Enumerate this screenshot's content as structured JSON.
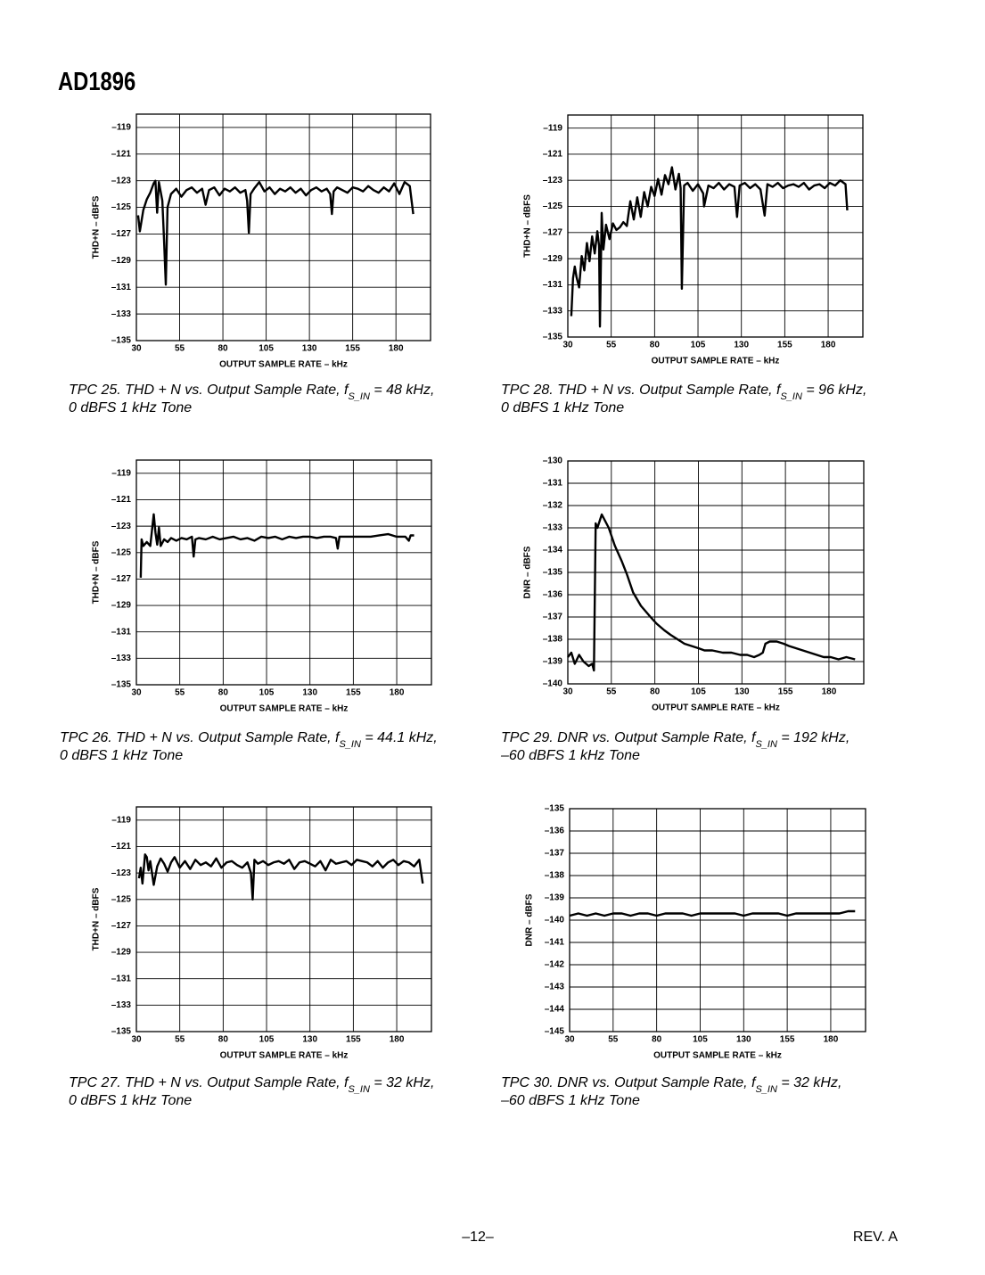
{
  "header": {
    "title": "AD1896"
  },
  "footer": {
    "page": "–12–",
    "revision": "REV. A"
  },
  "chart_data": [
    {
      "type": "line",
      "color": "#000000",
      "grid": true,
      "caption": {
        "prefix": "TPC 25.  THD + N vs. Output Sample Rate, f",
        "subscript": "S_IN",
        "suffix": " = 48 kHz,",
        "line2": "0 dBFS 1 kHz Tone"
      },
      "xlabel": "OUTPUT SAMPLE RATE – kHz",
      "ylabel": "THD+N – dBFS",
      "xlim": [
        30,
        200
      ],
      "xticks": [
        30,
        55,
        80,
        105,
        130,
        155,
        180
      ],
      "ylim": [
        -135,
        -118
      ],
      "yticks": [
        {
          "value": -135,
          "label": "–135"
        },
        {
          "value": -133,
          "label": "–133"
        },
        {
          "value": -131,
          "label": "–131"
        },
        {
          "value": -129,
          "label": "–129"
        },
        {
          "value": -127,
          "label": "–127"
        },
        {
          "value": -125,
          "label": "–125"
        },
        {
          "value": -123,
          "label": "–123"
        },
        {
          "value": -121,
          "label": "–121"
        },
        {
          "value": -119,
          "label": "–119"
        }
      ],
      "x": [
        31,
        32,
        34,
        36,
        38,
        40,
        41,
        42,
        43,
        44,
        45,
        46,
        47,
        48,
        50,
        53,
        56,
        59,
        62,
        65,
        68,
        70,
        72,
        75,
        78,
        81,
        84,
        87,
        90,
        93,
        94,
        95,
        96,
        98,
        101,
        104,
        107,
        110,
        113,
        116,
        119,
        122,
        125,
        128,
        131,
        134,
        137,
        140,
        142,
        143,
        144,
        146,
        149,
        152,
        155,
        158,
        161,
        164,
        167,
        170,
        173,
        176,
        179,
        182,
        185,
        188,
        190
      ],
      "values": [
        -125.6,
        -126.8,
        -125.2,
        -124.4,
        -123.9,
        -123.2,
        -123.0,
        -125.4,
        -123.1,
        -123.8,
        -124.5,
        -127.5,
        -130.8,
        -125.0,
        -124.0,
        -123.6,
        -124.2,
        -123.7,
        -123.5,
        -123.9,
        -123.6,
        -124.8,
        -123.7,
        -123.5,
        -124.1,
        -123.6,
        -123.8,
        -123.5,
        -123.9,
        -123.7,
        -124.5,
        -126.9,
        -124.0,
        -123.6,
        -123.1,
        -123.8,
        -123.5,
        -124.0,
        -123.6,
        -123.8,
        -123.5,
        -123.9,
        -123.6,
        -124.1,
        -123.7,
        -123.5,
        -123.8,
        -123.6,
        -124.0,
        -125.5,
        -123.8,
        -123.5,
        -123.7,
        -123.9,
        -123.5,
        -123.6,
        -123.8,
        -123.4,
        -123.7,
        -123.9,
        -123.5,
        -123.8,
        -123.2,
        -124.0,
        -123.1,
        -123.4,
        -125.5
      ]
    },
    {
      "type": "line",
      "color": "#000000",
      "grid": true,
      "caption": {
        "prefix": "TPC 26.  THD + N vs. Output Sample Rate, f",
        "subscript": "S_IN",
        "suffix": " = 44.1 kHz,",
        "line2": "0 dBFS 1 kHz Tone"
      },
      "xlabel": "OUTPUT SAMPLE RATE – kHz",
      "ylabel": "THD+N – dBFS",
      "xlim": [
        30,
        200
      ],
      "xticks": [
        30,
        55,
        80,
        105,
        130,
        155,
        180
      ],
      "ylim": [
        -135,
        -118
      ],
      "yticks": [
        {
          "value": -135,
          "label": "–135"
        },
        {
          "value": -133,
          "label": "–133"
        },
        {
          "value": -131,
          "label": "–131"
        },
        {
          "value": -129,
          "label": "–129"
        },
        {
          "value": -127,
          "label": "–127"
        },
        {
          "value": -125,
          "label": "–125"
        },
        {
          "value": -123,
          "label": "–123"
        },
        {
          "value": -121,
          "label": "–121"
        },
        {
          "value": -119,
          "label": "–119"
        }
      ],
      "x": [
        32.5,
        33,
        34,
        36,
        38,
        40,
        41,
        42,
        43,
        44,
        46,
        48,
        50,
        53,
        56,
        59,
        62,
        63,
        64,
        66,
        70,
        74,
        78,
        82,
        86,
        90,
        94,
        98,
        102,
        106,
        110,
        114,
        118,
        122,
        126,
        130,
        134,
        138,
        142,
        145,
        146,
        147,
        150,
        155,
        160,
        165,
        170,
        175,
        180,
        185,
        187,
        188,
        190
      ],
      "values": [
        -126.9,
        -124.0,
        -124.5,
        -124.2,
        -124.5,
        -122.1,
        -123.5,
        -124.4,
        -123.1,
        -124.5,
        -124.0,
        -124.2,
        -123.9,
        -124.1,
        -123.9,
        -124.0,
        -123.8,
        -125.3,
        -124.0,
        -123.9,
        -124.0,
        -123.8,
        -124.0,
        -123.9,
        -123.8,
        -124.0,
        -123.9,
        -124.1,
        -123.8,
        -123.9,
        -123.8,
        -124.0,
        -123.8,
        -123.9,
        -123.8,
        -123.8,
        -123.9,
        -123.8,
        -123.8,
        -123.9,
        -124.7,
        -123.8,
        -123.8,
        -123.8,
        -123.8,
        -123.8,
        -123.7,
        -123.6,
        -123.8,
        -123.8,
        -124.1,
        -123.7,
        -123.7
      ]
    },
    {
      "type": "line",
      "color": "#000000",
      "grid": true,
      "caption": {
        "prefix": "TPC 27.  THD + N vs. Output Sample Rate, f",
        "subscript": "S_IN",
        "suffix": " = 32 kHz,",
        "line2": "0 dBFS 1 kHz Tone"
      },
      "xlabel": "OUTPUT SAMPLE RATE – kHz",
      "ylabel": "THD+N – dBFS",
      "xlim": [
        30,
        200
      ],
      "xticks": [
        30,
        55,
        80,
        105,
        130,
        155,
        180
      ],
      "ylim": [
        -135,
        -118
      ],
      "yticks": [
        {
          "value": -135,
          "label": "–135"
        },
        {
          "value": -133,
          "label": "–133"
        },
        {
          "value": -131,
          "label": "–131"
        },
        {
          "value": -129,
          "label": "–129"
        },
        {
          "value": -127,
          "label": "–127"
        },
        {
          "value": -125,
          "label": "–125"
        },
        {
          "value": -123,
          "label": "–123"
        },
        {
          "value": -121,
          "label": "–121"
        },
        {
          "value": -119,
          "label": "–119"
        }
      ],
      "x": [
        31.5,
        32.5,
        33.5,
        35,
        36,
        37,
        38,
        40,
        42,
        44,
        46,
        48,
        50,
        52,
        55,
        58,
        61,
        64,
        67,
        70,
        73,
        76,
        79,
        82,
        85,
        88,
        91,
        94,
        96,
        97,
        98,
        100,
        103,
        106,
        109,
        112,
        115,
        118,
        121,
        124,
        127,
        130,
        133,
        136,
        139,
        142,
        145,
        148,
        151,
        154,
        157,
        160,
        163,
        166,
        169,
        172,
        175,
        178,
        181,
        184,
        187,
        190,
        193,
        195
      ],
      "values": [
        -123.4,
        -122.6,
        -123.8,
        -121.6,
        -121.8,
        -122.8,
        -122.1,
        -123.9,
        -122.5,
        -121.9,
        -122.3,
        -122.9,
        -122.2,
        -121.8,
        -122.6,
        -122.1,
        -122.7,
        -122.0,
        -122.4,
        -122.2,
        -122.5,
        -121.9,
        -122.6,
        -122.2,
        -122.1,
        -122.4,
        -122.6,
        -122.2,
        -123.0,
        -125.0,
        -122.0,
        -122.3,
        -122.1,
        -122.4,
        -122.2,
        -122.1,
        -122.3,
        -122.0,
        -122.7,
        -122.2,
        -122.1,
        -122.3,
        -122.5,
        -122.1,
        -122.8,
        -122.0,
        -122.3,
        -122.2,
        -122.1,
        -122.4,
        -122.0,
        -122.1,
        -122.2,
        -122.5,
        -122.1,
        -122.6,
        -122.2,
        -122.0,
        -122.4,
        -122.1,
        -122.2,
        -122.5,
        -122.0,
        -123.8
      ]
    },
    {
      "type": "line",
      "color": "#000000",
      "grid": true,
      "caption": {
        "prefix": "TPC 28.  THD + N vs. Output Sample Rate, f",
        "subscript": "S_IN",
        "suffix": " = 96 kHz,",
        "line2": "0 dBFS 1 kHz Tone"
      },
      "xlabel": "OUTPUT SAMPLE RATE – kHz",
      "ylabel": "THD+N – dBFS",
      "xlim": [
        30,
        200
      ],
      "xticks": [
        30,
        55,
        80,
        105,
        130,
        155,
        180
      ],
      "ylim": [
        -135,
        -118
      ],
      "yticks": [
        {
          "value": -135,
          "label": "–135"
        },
        {
          "value": -133,
          "label": "–133"
        },
        {
          "value": -131,
          "label": "–131"
        },
        {
          "value": -129,
          "label": "–129"
        },
        {
          "value": -127,
          "label": "–127"
        },
        {
          "value": -125,
          "label": "–125"
        },
        {
          "value": -123,
          "label": "–123"
        },
        {
          "value": -121,
          "label": "–121"
        },
        {
          "value": -119,
          "label": "–119"
        }
      ],
      "x": [
        32,
        33,
        34,
        35,
        36.5,
        38,
        39.5,
        41,
        42.5,
        44,
        45.5,
        47,
        48,
        48.5,
        49.5,
        50.5,
        52,
        54,
        56,
        58,
        60,
        62,
        64,
        66,
        68,
        70,
        72,
        74,
        76,
        78,
        80,
        82,
        84,
        86,
        88,
        90,
        92,
        94,
        95,
        95.7,
        97,
        99,
        102,
        105,
        108,
        108.5,
        111,
        114,
        117,
        120,
        123,
        126,
        127.5,
        129,
        132,
        135,
        138,
        141,
        143.4,
        145,
        148,
        151,
        154,
        157,
        160,
        163,
        166,
        169,
        172,
        175,
        178,
        181,
        184,
        187,
        190,
        191
      ],
      "values": [
        -133.4,
        -130.5,
        -129.6,
        -130.4,
        -131.2,
        -128.8,
        -129.9,
        -127.8,
        -129.2,
        -127.3,
        -128.6,
        -126.9,
        -128.0,
        -134.2,
        -125.5,
        -128.3,
        -126.4,
        -127.5,
        -126.3,
        -126.8,
        -126.6,
        -126.2,
        -126.5,
        -124.6,
        -126.0,
        -124.3,
        -125.8,
        -123.9,
        -125.0,
        -123.5,
        -124.2,
        -122.9,
        -124.1,
        -122.6,
        -123.3,
        -122.0,
        -123.7,
        -122.5,
        -123.6,
        -131.3,
        -123.4,
        -123.2,
        -123.8,
        -123.3,
        -124.0,
        -125.0,
        -123.4,
        -123.6,
        -123.2,
        -123.7,
        -123.3,
        -123.5,
        -125.8,
        -123.4,
        -123.2,
        -123.6,
        -123.3,
        -123.7,
        -125.7,
        -123.3,
        -123.5,
        -123.2,
        -123.6,
        -123.4,
        -123.3,
        -123.5,
        -123.2,
        -123.7,
        -123.4,
        -123.3,
        -123.6,
        -123.2,
        -123.4,
        -123.0,
        -123.3,
        -125.3
      ]
    },
    {
      "type": "line",
      "color": "#000000",
      "grid": true,
      "caption": {
        "prefix": "TPC 29.  DNR vs. Output Sample Rate, f",
        "subscript": "S_IN",
        "suffix": " = 192 kHz,",
        "line2": "–60 dBFS 1 kHz Tone"
      },
      "xlabel": "OUTPUT SAMPLE RATE – kHz",
      "ylabel": "DNR – dBFS",
      "xlim": [
        30,
        200
      ],
      "xticks": [
        30,
        55,
        80,
        105,
        130,
        155,
        180
      ],
      "ylim": [
        -140,
        -130
      ],
      "yticks": [
        {
          "value": -140,
          "label": "–140"
        },
        {
          "value": -139,
          "label": "–139"
        },
        {
          "value": -138,
          "label": "–138"
        },
        {
          "value": -137,
          "label": "–137"
        },
        {
          "value": -136,
          "label": "–136"
        },
        {
          "value": -135,
          "label": "–135"
        },
        {
          "value": -134,
          "label": "–134"
        },
        {
          "value": -133,
          "label": "–133"
        },
        {
          "value": -132,
          "label": "–132"
        },
        {
          "value": -131,
          "label": "–131"
        },
        {
          "value": -130,
          "label": "–130"
        }
      ],
      "x": [
        30,
        32,
        34,
        36.5,
        39,
        42,
        44,
        45,
        46,
        47,
        49.5,
        53.5,
        57,
        61,
        64,
        67.5,
        72,
        77.5,
        81,
        85.5,
        89,
        93,
        97,
        101,
        105,
        108.5,
        113,
        119,
        124,
        129,
        133,
        137,
        140,
        142,
        143.5,
        146,
        150,
        154,
        157,
        161,
        165,
        169,
        173,
        177,
        181,
        185.5,
        190,
        195
      ],
      "values": [
        -138.8,
        -138.6,
        -139.1,
        -138.7,
        -139.0,
        -139.2,
        -139.1,
        -139.4,
        -132.8,
        -133.0,
        -132.4,
        -133.0,
        -133.8,
        -134.5,
        -135.1,
        -135.9,
        -136.5,
        -137.0,
        -137.3,
        -137.6,
        -137.8,
        -138.0,
        -138.2,
        -138.3,
        -138.4,
        -138.5,
        -138.5,
        -138.6,
        -138.6,
        -138.7,
        -138.7,
        -138.8,
        -138.7,
        -138.6,
        -138.2,
        -138.1,
        -138.1,
        -138.2,
        -138.3,
        -138.4,
        -138.5,
        -138.6,
        -138.7,
        -138.8,
        -138.8,
        -138.9,
        -138.8,
        -138.9
      ]
    },
    {
      "type": "line",
      "color": "#000000",
      "grid": true,
      "caption": {
        "prefix": "TPC 30.  DNR vs. Output Sample Rate, f",
        "subscript": "S_IN",
        "suffix": " = 32 kHz,",
        "line2": "–60 dBFS 1 kHz Tone"
      },
      "xlabel": "OUTPUT SAMPLE RATE – kHz",
      "ylabel": "DNR – dBFS",
      "xlim": [
        30,
        200
      ],
      "xticks": [
        30,
        55,
        80,
        105,
        130,
        155,
        180
      ],
      "ylim": [
        -145,
        -135
      ],
      "yticks": [
        {
          "value": -145,
          "label": "–145"
        },
        {
          "value": -144,
          "label": "–144"
        },
        {
          "value": -143,
          "label": "–143"
        },
        {
          "value": -142,
          "label": "–142"
        },
        {
          "value": -141,
          "label": "–141"
        },
        {
          "value": -140,
          "label": "–140"
        },
        {
          "value": -139,
          "label": "–139"
        },
        {
          "value": -138,
          "label": "–138"
        },
        {
          "value": -137,
          "label": "–137"
        },
        {
          "value": -136,
          "label": "–136"
        },
        {
          "value": -135,
          "label": "–135"
        }
      ],
      "x": [
        30,
        35,
        40,
        45,
        50,
        55,
        60,
        65,
        70,
        75,
        80,
        85,
        90,
        95,
        100,
        105,
        110,
        115,
        120,
        125,
        130,
        135,
        140,
        145,
        150,
        155,
        160,
        165,
        170,
        175,
        180,
        185,
        190,
        194
      ],
      "values": [
        -139.8,
        -139.7,
        -139.8,
        -139.7,
        -139.8,
        -139.7,
        -139.7,
        -139.8,
        -139.7,
        -139.7,
        -139.8,
        -139.7,
        -139.7,
        -139.7,
        -139.8,
        -139.7,
        -139.7,
        -139.7,
        -139.7,
        -139.7,
        -139.8,
        -139.7,
        -139.7,
        -139.7,
        -139.7,
        -139.8,
        -139.7,
        -139.7,
        -139.7,
        -139.7,
        -139.7,
        -139.7,
        -139.6,
        -139.6
      ]
    }
  ]
}
